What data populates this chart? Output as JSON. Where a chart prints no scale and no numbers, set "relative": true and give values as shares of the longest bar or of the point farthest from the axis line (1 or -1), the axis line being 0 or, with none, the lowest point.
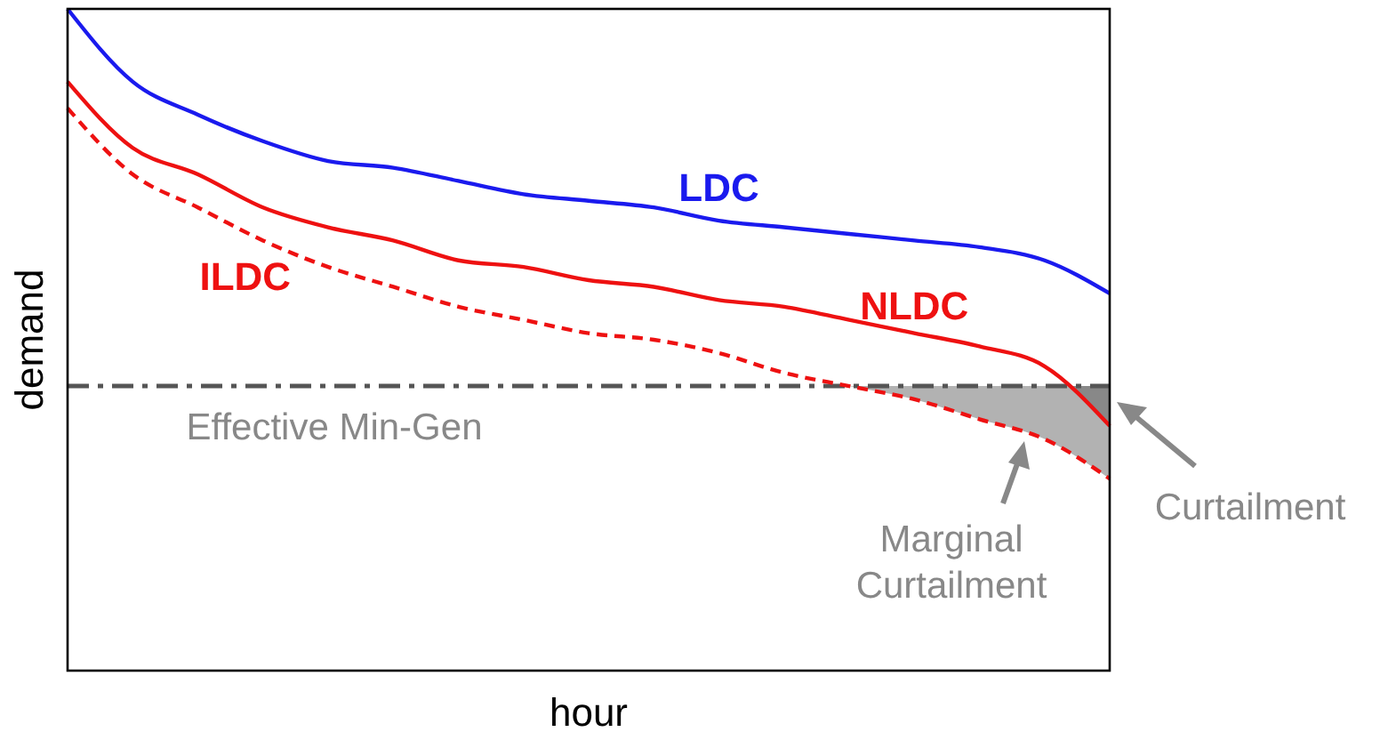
{
  "chart_data": {
    "type": "line",
    "relative": true,
    "xlabel": "hour",
    "ylabel": "demand",
    "categories": [
      null,
      null,
      null,
      null,
      null,
      null,
      null,
      null,
      null,
      null,
      null,
      null,
      null,
      null,
      null,
      null,
      null
    ],
    "series": [
      {
        "name": "LDC",
        "color": "#1a1aee",
        "values": [
          1,
          0.89,
          0.84,
          0.8,
          0.77,
          0.76,
          0.74,
          0.72,
          0.71,
          0.7,
          0.68,
          0.67,
          0.66,
          0.65,
          0.64,
          0.62,
          0.57
        ]
      },
      {
        "name": "NLDC",
        "color": "#ee1111",
        "values": [
          0.89,
          0.79,
          0.75,
          0.7,
          0.67,
          0.65,
          0.62,
          0.61,
          0.59,
          0.58,
          0.56,
          0.55,
          0.53,
          0.51,
          0.49,
          0.46,
          0.37
        ]
      },
      {
        "name": "ILDC",
        "color": "#ee1111",
        "line_style": "dashed",
        "values": [
          0.85,
          0.75,
          0.7,
          0.65,
          0.61,
          0.58,
          0.55,
          0.53,
          0.51,
          0.5,
          0.48,
          0.45,
          0.43,
          0.41,
          0.38,
          0.35,
          0.29
        ]
      }
    ],
    "ref_lines": [
      {
        "axis": "y",
        "value": 0.43,
        "label": "Effective Min-Gen",
        "color": "#555555",
        "line_style": "dashdot"
      }
    ],
    "annotations": [
      "Curtailment",
      "Marginal Curtailment"
    ]
  }
}
